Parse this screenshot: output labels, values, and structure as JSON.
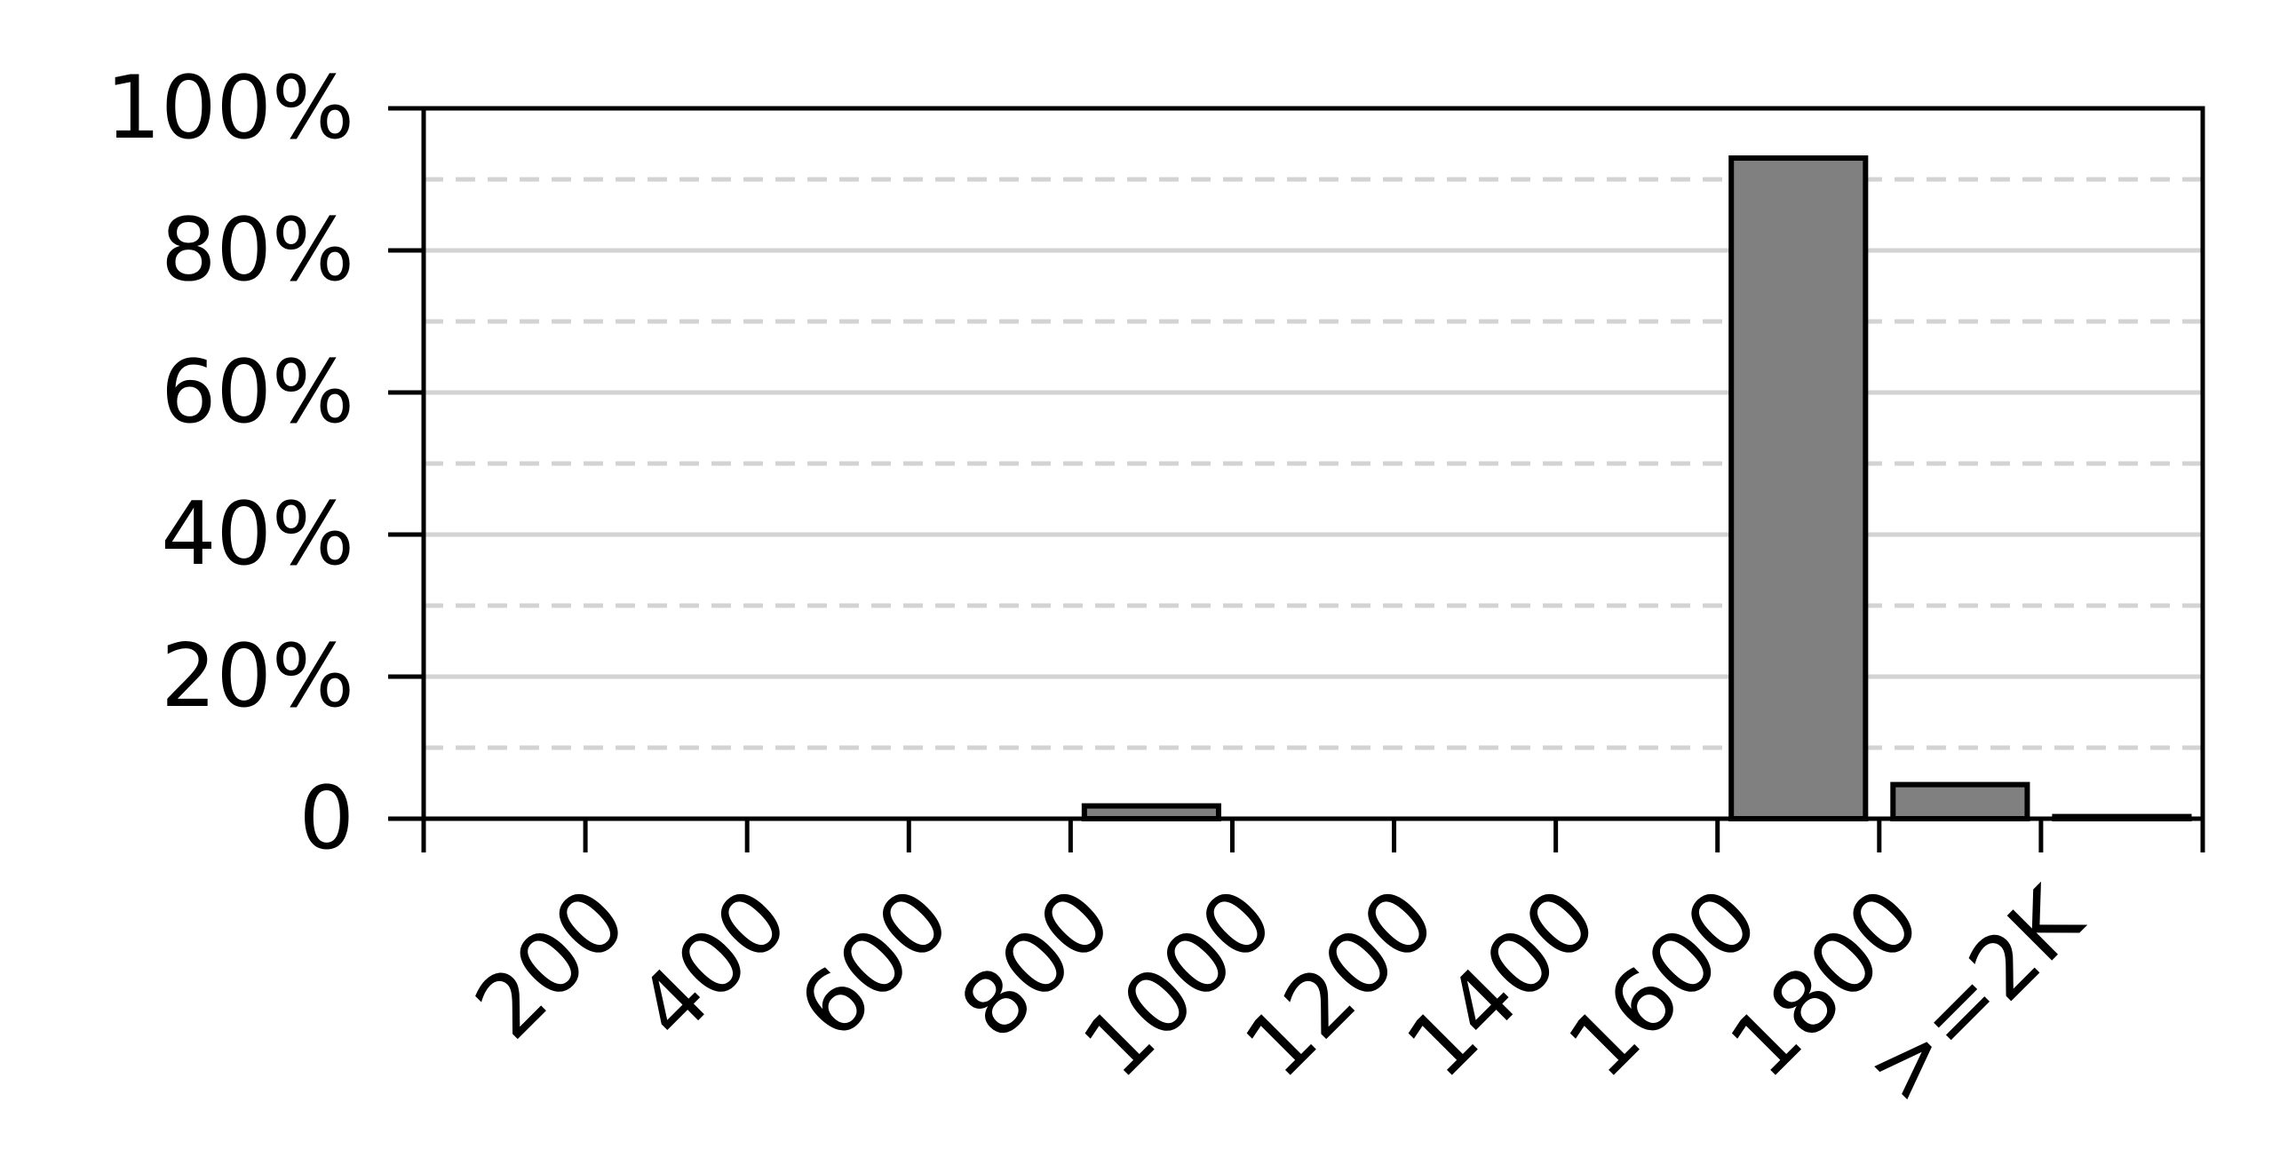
{
  "chart_data": {
    "type": "bar",
    "title": "",
    "xlabel": "",
    "ylabel": "",
    "ylim": [
      0,
      100
    ],
    "grid": {
      "major": "solid",
      "minor": "dashed",
      "axis": "y"
    },
    "x_tick_labels": [
      "200",
      "400",
      "600",
      "800",
      "1000",
      "1200",
      "1400",
      "1600",
      "1800",
      ">=2K"
    ],
    "y_ticks": [
      {
        "value": 0,
        "label": "0"
      },
      {
        "value": 20,
        "label": "20%"
      },
      {
        "value": 40,
        "label": "40%"
      },
      {
        "value": 60,
        "label": "60%"
      },
      {
        "value": 80,
        "label": "80%"
      },
      {
        "value": 100,
        "label": "100%"
      }
    ],
    "values": [
      0,
      0,
      0,
      0,
      1.8,
      0,
      0,
      0,
      93,
      4.8,
      0.3
    ],
    "colors": {
      "bar_fill": "#808080",
      "bar_edge": "#000000",
      "grid": "#d3d3d3"
    }
  }
}
